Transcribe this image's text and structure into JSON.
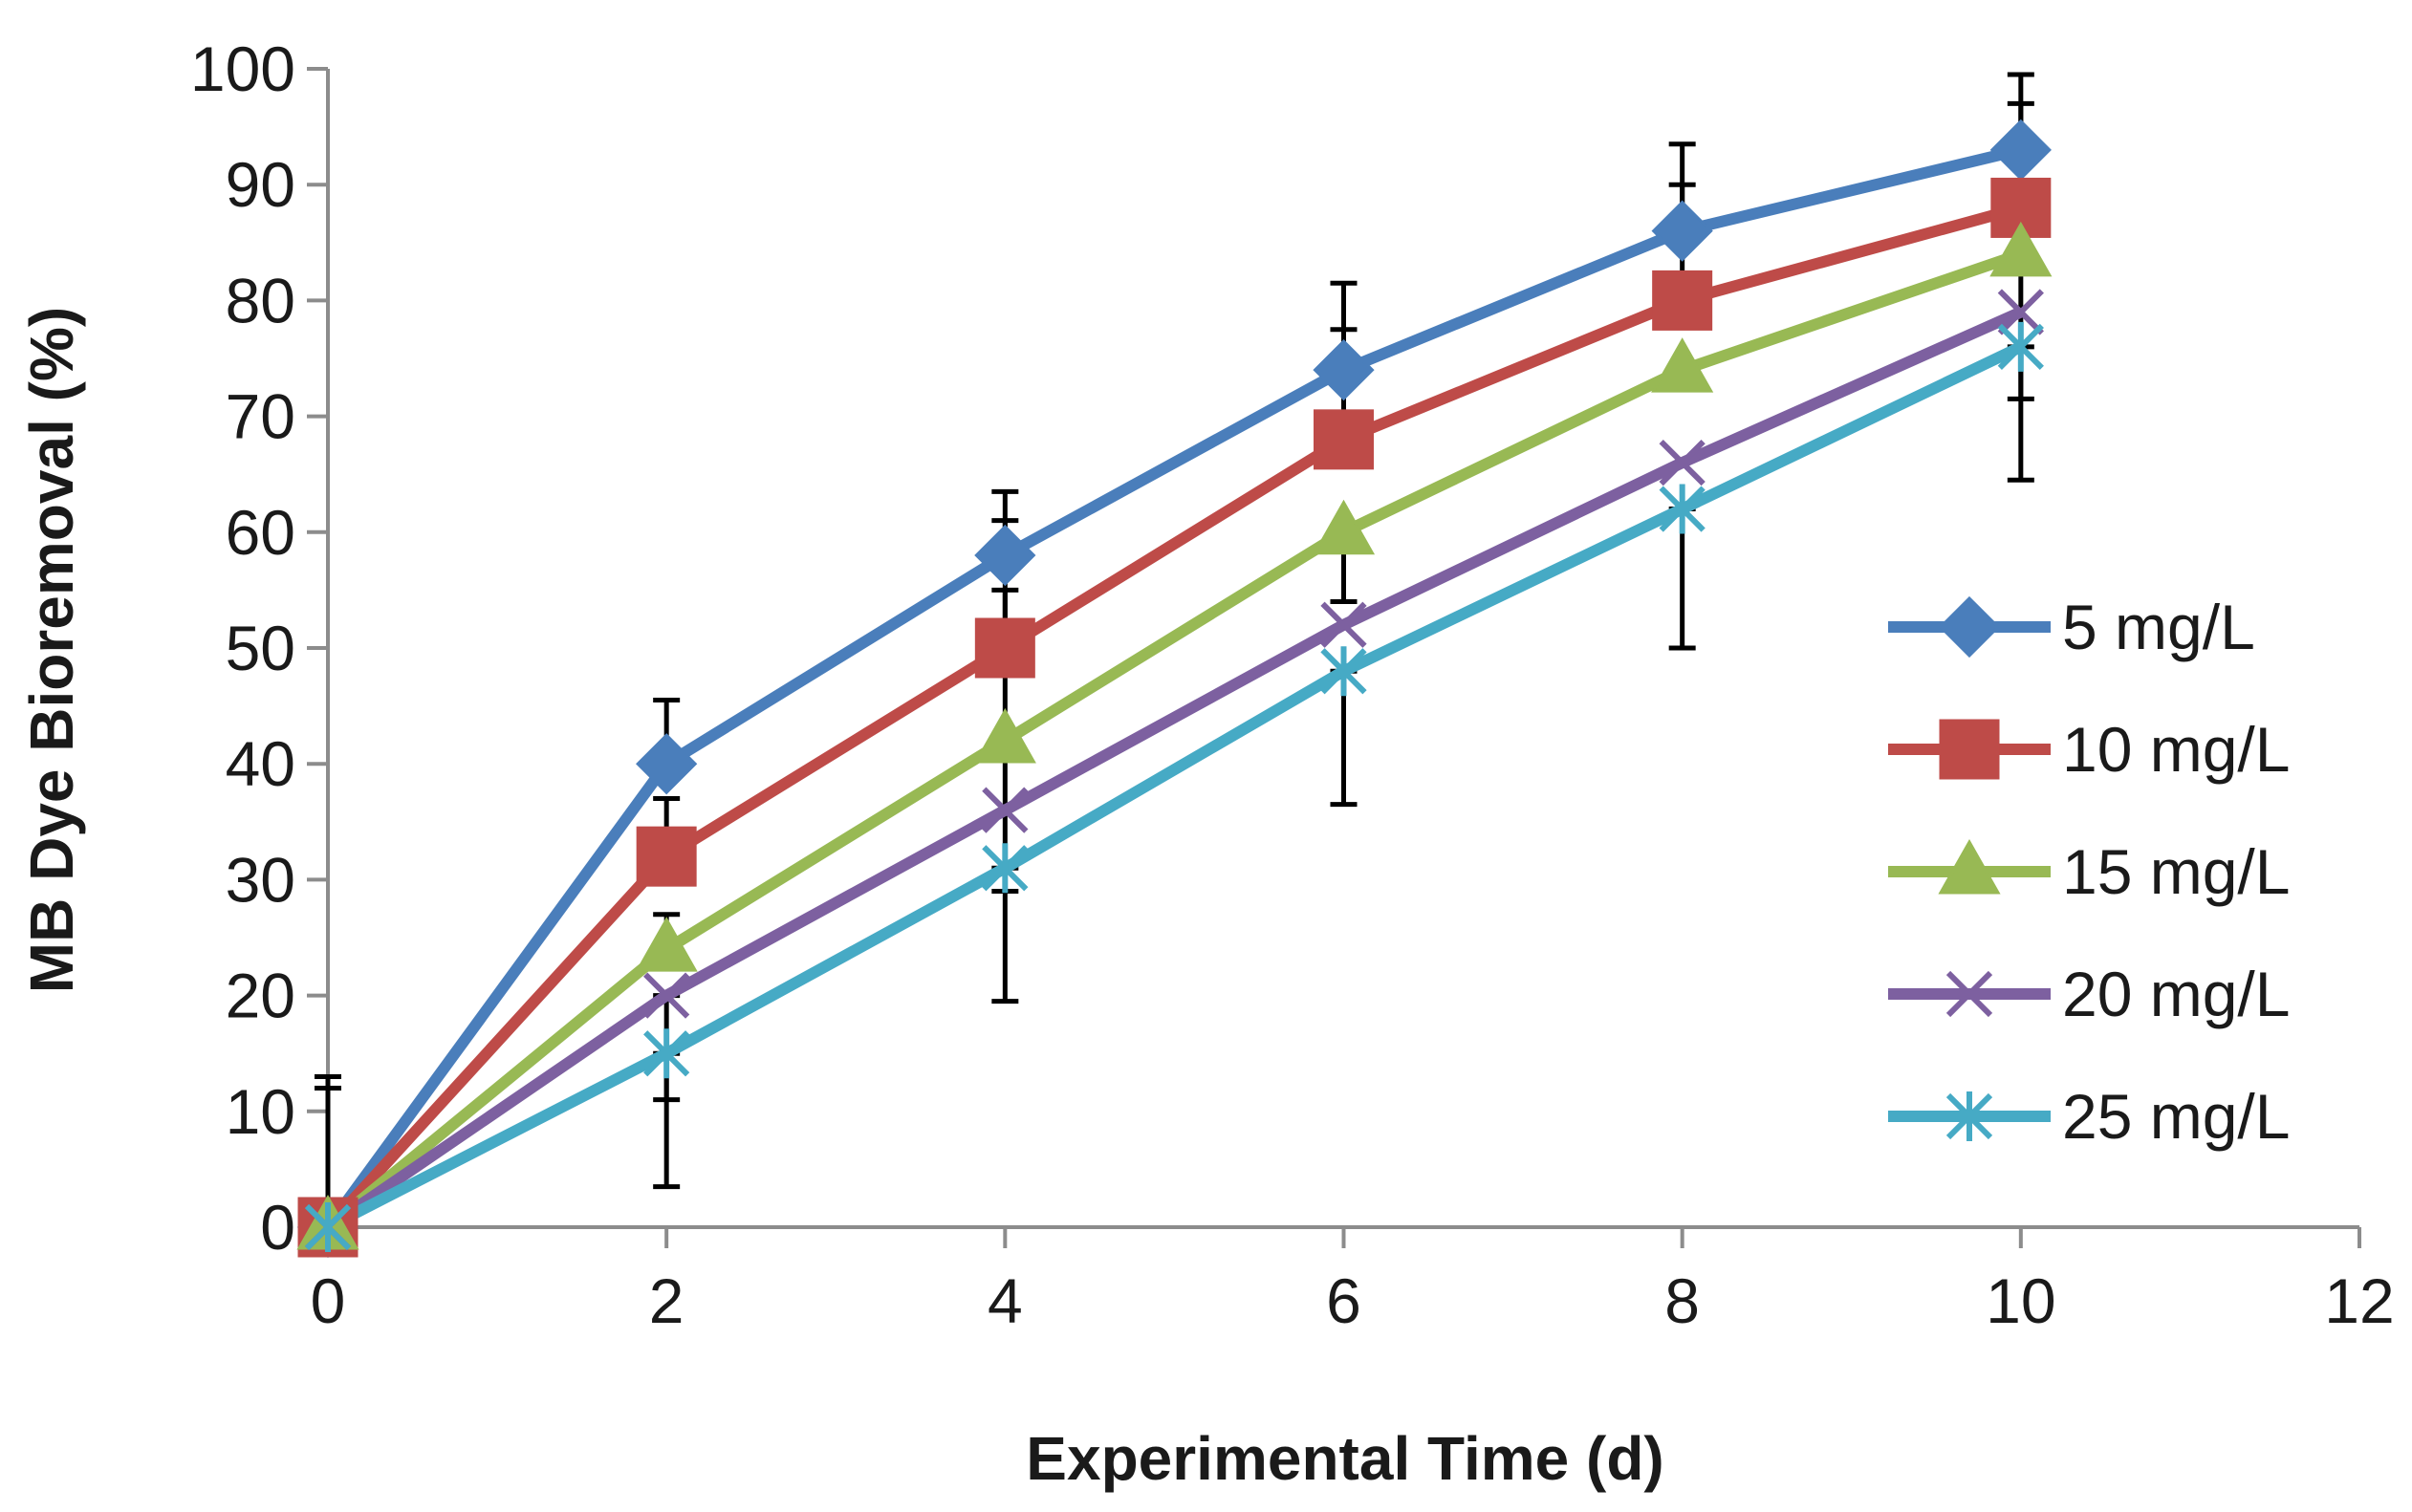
{
  "chart_data": {
    "type": "line",
    "title": "",
    "xlabel": "Experimental Time (d)",
    "ylabel": "MB Dye Bioremoval (%)",
    "x": [
      0,
      2,
      4,
      6,
      8,
      10
    ],
    "xlim": [
      0,
      12
    ],
    "ylim": [
      0,
      100
    ],
    "xticks": [
      "0",
      "2",
      "4",
      "6",
      "8",
      "10",
      "12"
    ],
    "yticks": [
      "0",
      "10",
      "20",
      "30",
      "40",
      "50",
      "60",
      "70",
      "80",
      "90",
      "100"
    ],
    "grid": false,
    "legend_position": "right",
    "series": [
      {
        "name": "5 mg/L",
        "color": "#4A7EBB",
        "marker": "diamond",
        "values": [
          0,
          40,
          58,
          74,
          86,
          93
        ]
      },
      {
        "name": "10 mg/L",
        "color": "#BE4B48",
        "marker": "square",
        "values": [
          0,
          32,
          50,
          68,
          80,
          88
        ]
      },
      {
        "name": "15 mg/L",
        "color": "#98B954",
        "marker": "triangle",
        "values": [
          0,
          24,
          42,
          60,
          74,
          84
        ]
      },
      {
        "name": "20 mg/L",
        "color": "#7D60A0",
        "marker": "x",
        "values": [
          0,
          20,
          36,
          52,
          66,
          79
        ]
      },
      {
        "name": "25 mg/L",
        "color": "#46AAC5",
        "marker": "star",
        "values": [
          0,
          15,
          31,
          48,
          62,
          76
        ]
      }
    ],
    "error_bars": [
      {
        "x": 0,
        "low": 0,
        "high": 13
      },
      {
        "x": 0,
        "low": 0,
        "high": 12
      },
      {
        "x": 2,
        "low": 40,
        "high": 45.5
      },
      {
        "x": 2,
        "low": 32,
        "high": 37
      },
      {
        "x": 2,
        "low": 24,
        "high": 27
      },
      {
        "x": 2,
        "low": 11,
        "high": 20
      },
      {
        "x": 2,
        "low": 3.5,
        "high": 15
      },
      {
        "x": 4,
        "low": 58,
        "high": 63.5
      },
      {
        "x": 4,
        "low": 50,
        "high": 55
      },
      {
        "x": 4,
        "low": 42,
        "high": 61
      },
      {
        "x": 4,
        "low": 29,
        "high": 42
      },
      {
        "x": 4,
        "low": 19.5,
        "high": 31
      },
      {
        "x": 6,
        "low": 74,
        "high": 81.5
      },
      {
        "x": 6,
        "low": 68,
        "high": 77.5
      },
      {
        "x": 6,
        "low": 54,
        "high": 60
      },
      {
        "x": 6,
        "low": 36.5,
        "high": 48
      },
      {
        "x": 8,
        "low": 86,
        "high": 93.5
      },
      {
        "x": 8,
        "low": 80,
        "high": 90
      },
      {
        "x": 8,
        "low": 50,
        "high": 62
      },
      {
        "x": 10,
        "low": 93,
        "high": 99.5
      },
      {
        "x": 10,
        "low": 88,
        "high": 97
      },
      {
        "x": 10,
        "low": 71.5,
        "high": 84
      },
      {
        "x": 10,
        "low": 64.5,
        "high": 76
      }
    ]
  }
}
